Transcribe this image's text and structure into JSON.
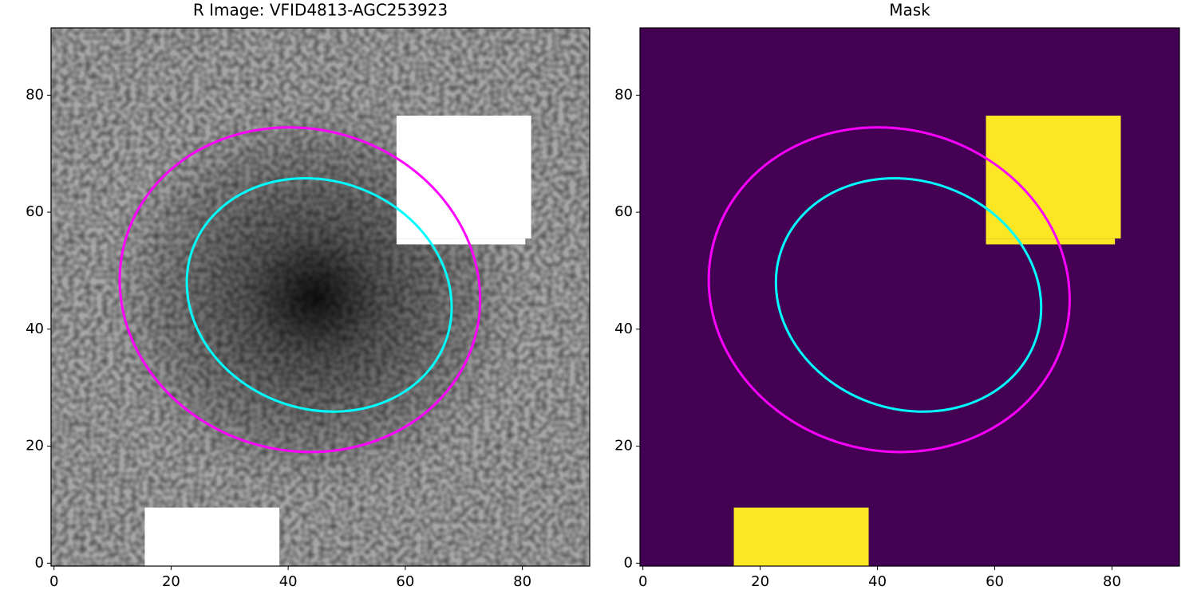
{
  "chart_data": [
    {
      "type": "image",
      "title": "R Image: VFID4813-AGC253923",
      "colormap": "gray",
      "xlim": [
        -0.5,
        91.5
      ],
      "ylim": [
        -0.5,
        91.5
      ],
      "xticks": [
        0,
        20,
        40,
        60,
        80
      ],
      "yticks": [
        0,
        20,
        40,
        60,
        80
      ],
      "mask_color": "#ffffff",
      "masked_regions": [
        {
          "x": [
            15.5,
            38.5
          ],
          "y": [
            -0.5,
            9.5
          ]
        },
        {
          "x": [
            58.5,
            81.5
          ],
          "y": [
            55.5,
            76.5
          ]
        },
        {
          "x": [
            58.5,
            80.5
          ],
          "y": [
            54.5,
            55.5
          ]
        }
      ],
      "ellipses": [
        {
          "center": [
            42,
            46.75
          ],
          "semi_axes": [
            31,
            27.5
          ],
          "angle": -15,
          "color": "#ff00ff"
        },
        {
          "center": [
            45.3,
            45.85
          ],
          "semi_axes": [
            23,
            19.5
          ],
          "angle": -20,
          "color": "#00ffff"
        }
      ]
    },
    {
      "type": "image",
      "title": "Mask",
      "colormap": "viridis",
      "background": "#440154",
      "xlim": [
        -0.5,
        91.5
      ],
      "ylim": [
        -0.5,
        91.5
      ],
      "xticks": [
        0,
        20,
        40,
        60,
        80
      ],
      "yticks": [
        0,
        20,
        40,
        60,
        80
      ],
      "mask_color": "#fde725",
      "masked_regions": [
        {
          "x": [
            15.5,
            38.5
          ],
          "y": [
            -0.5,
            9.5
          ]
        },
        {
          "x": [
            58.5,
            81.5
          ],
          "y": [
            55.5,
            76.5
          ]
        },
        {
          "x": [
            58.5,
            80.5
          ],
          "y": [
            54.5,
            55.5
          ]
        }
      ],
      "ellipses": [
        {
          "center": [
            42,
            46.75
          ],
          "semi_axes": [
            31,
            27.5
          ],
          "angle": -15,
          "color": "#ff00ff"
        },
        {
          "center": [
            45.3,
            45.85
          ],
          "semi_axes": [
            23,
            19.5
          ],
          "angle": -20,
          "color": "#00ffff"
        }
      ]
    }
  ]
}
